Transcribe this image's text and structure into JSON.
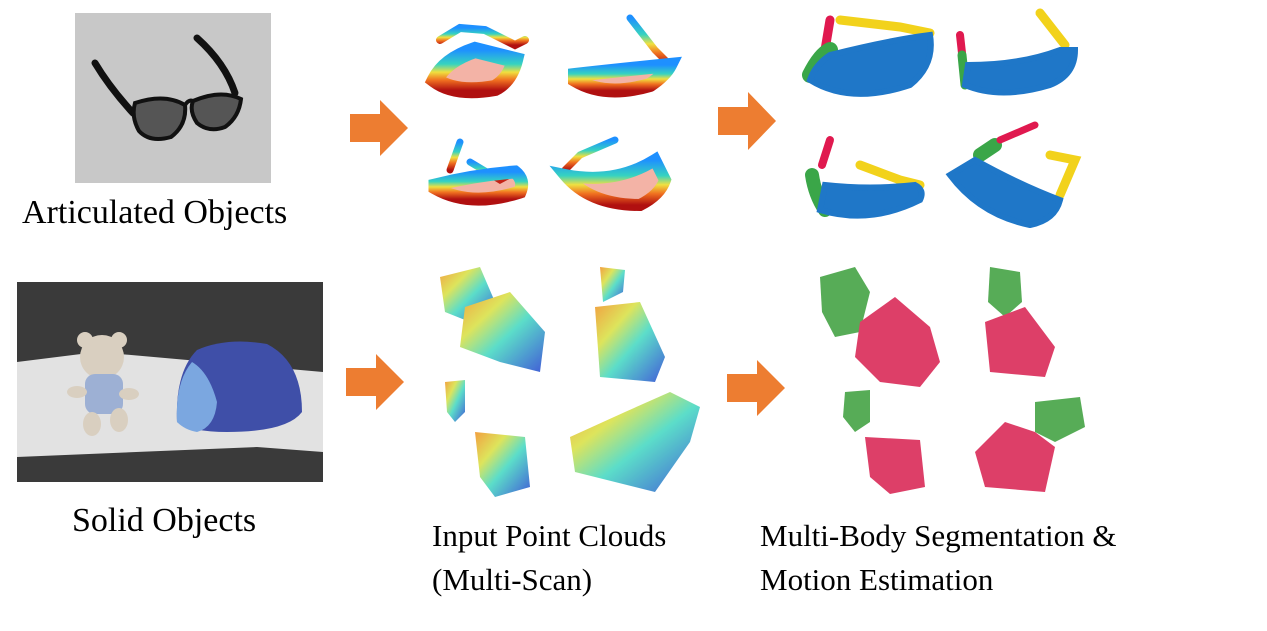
{
  "labels": {
    "articulated": "Articulated Objects",
    "solid": "Solid Objects",
    "input_line1": "Input Point Clouds",
    "input_line2": "(Multi-Scan)",
    "output_line1": "Multi-Body Segmentation &",
    "output_line2": "Motion Estimation"
  },
  "colors": {
    "arrow": "#ed7d31",
    "segment_blue": "#1f77c8",
    "segment_green": "#3aa648",
    "segment_yellow": "#f2d21b",
    "segment_red": "#e0194f",
    "solid_red": "#d81e4e",
    "solid_green": "#3a9e3a",
    "photo_gray": "#c8c8c8",
    "photo_dark": "#3a3a3a"
  },
  "icons": {
    "glasses": "sunglasses-photo",
    "scene": "teddy-bear-and-blue-object-photo",
    "flow": "right-arrow-icon"
  }
}
